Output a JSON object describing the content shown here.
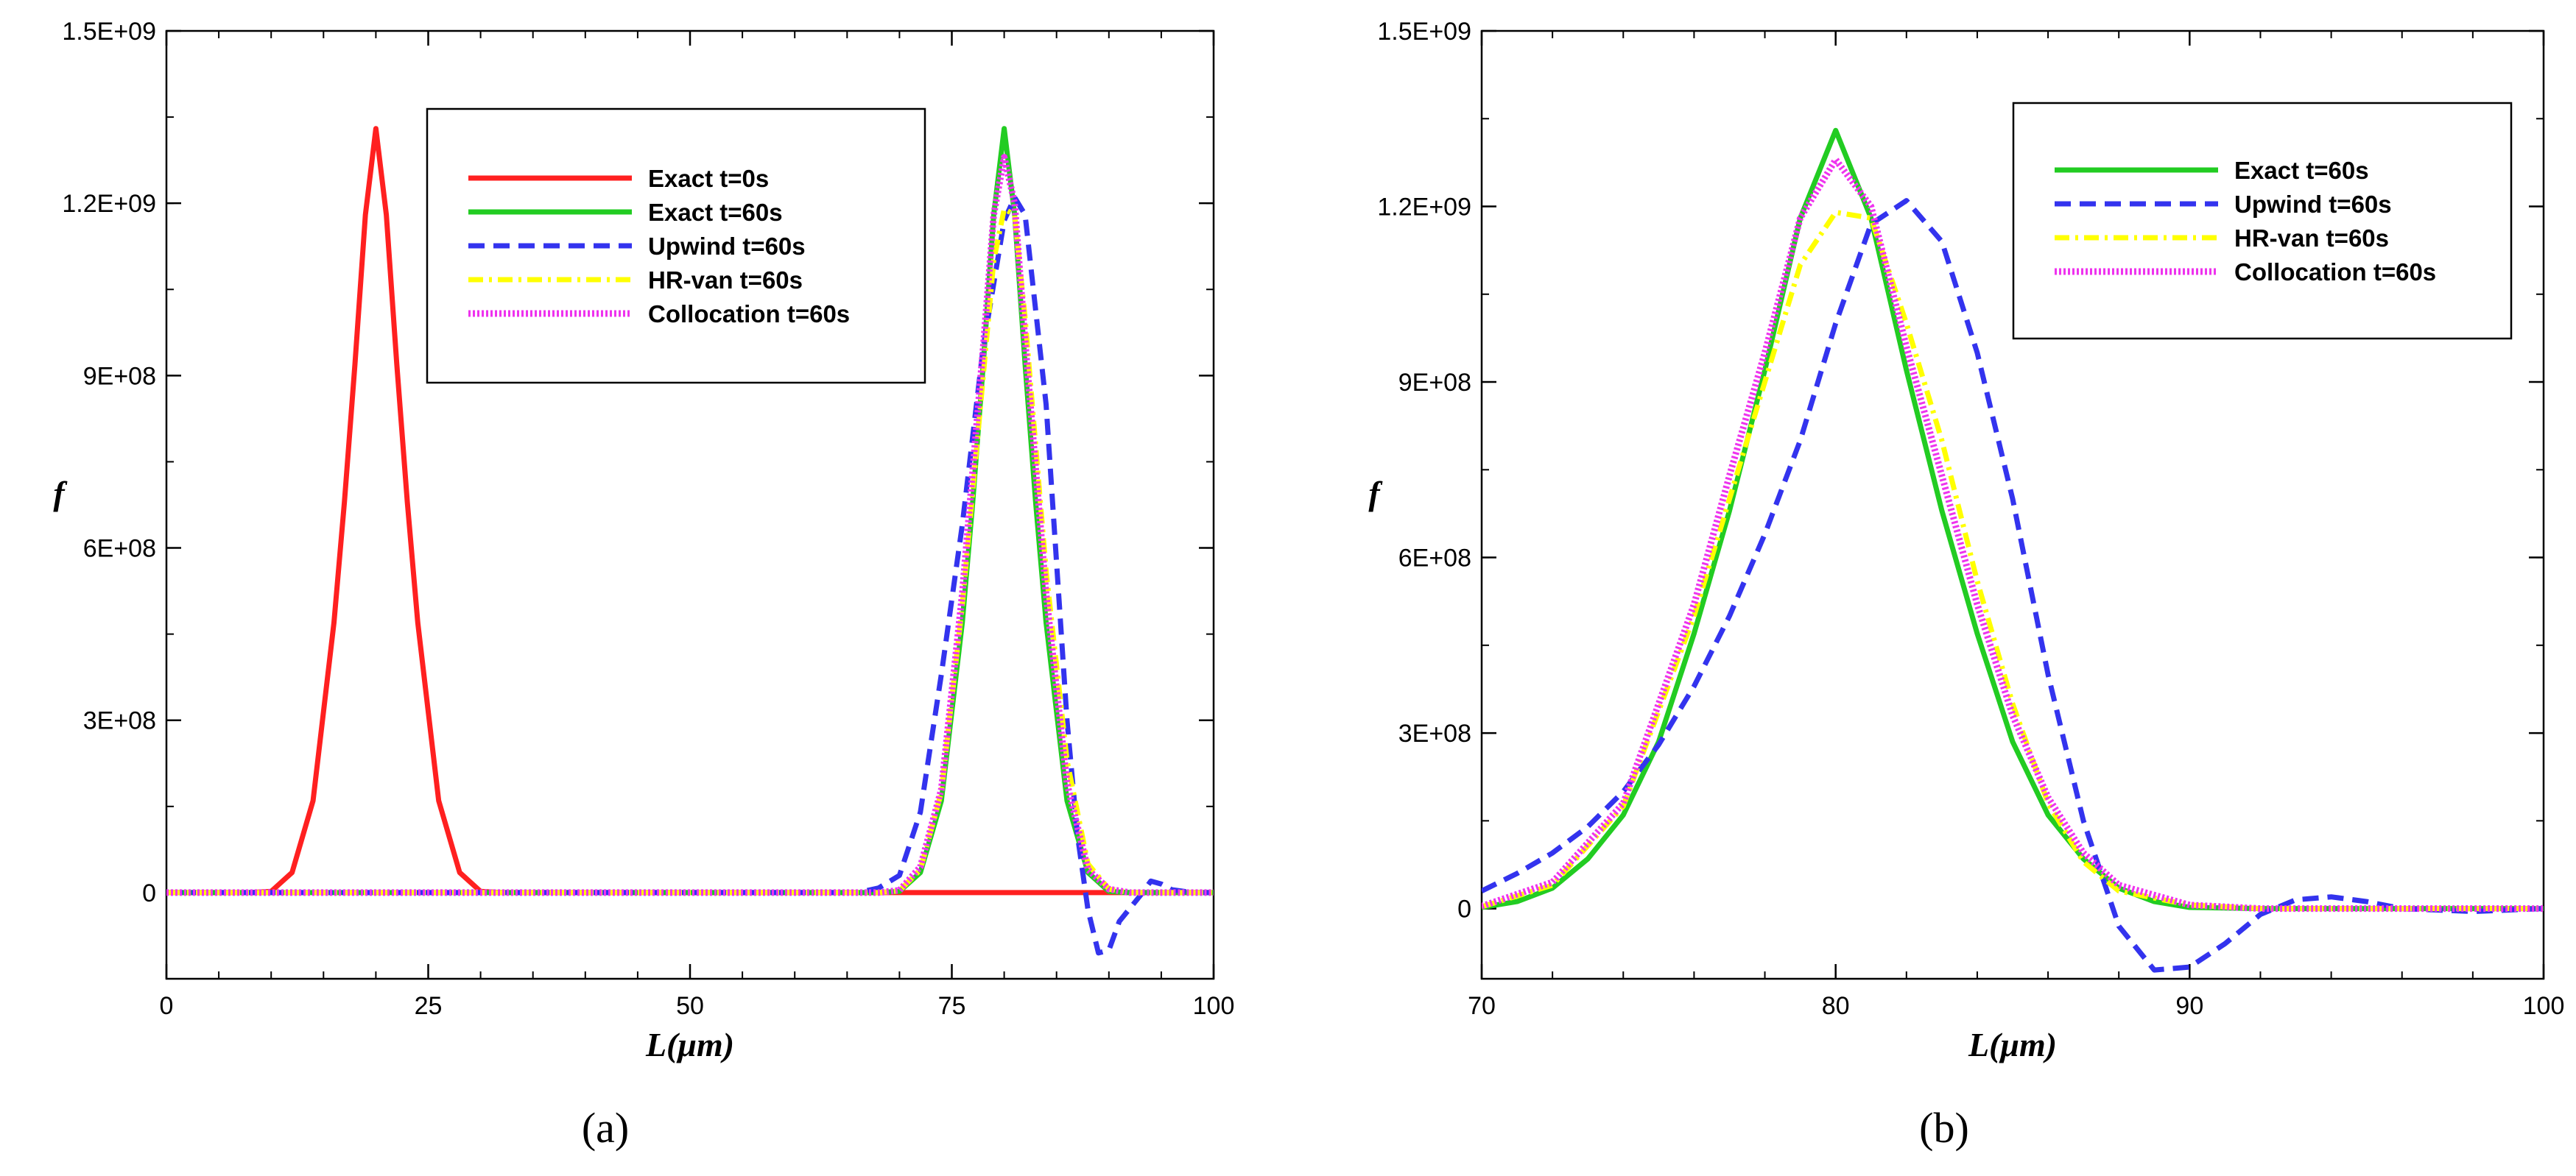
{
  "chart_data": [
    {
      "type": "line",
      "panel": "(a)",
      "xlabel": "L(μm)",
      "ylabel": "f",
      "xlim": [
        0,
        100
      ],
      "ylim": [
        -150000000,
        1500000000
      ],
      "xticks": [
        0,
        25,
        50,
        75,
        100
      ],
      "xtick_labels": [
        "0",
        "25",
        "50",
        "75",
        "100"
      ],
      "yticks": [
        0,
        300000000,
        600000000,
        900000000,
        1200000000,
        1500000000
      ],
      "ytick_labels": [
        "0",
        "3E+08",
        "6E+08",
        "9E+08",
        "1.2E+09",
        "1.5E+09"
      ],
      "legend_position": "top-right",
      "series": [
        {
          "name": "Exact t=0s",
          "color": "#ff2020",
          "dash": "solid",
          "x": [
            0,
            8,
            10,
            12,
            14,
            16,
            17,
            18,
            19,
            20,
            21,
            22,
            23,
            24,
            26,
            28,
            30,
            32,
            100
          ],
          "y": [
            0,
            0,
            2000000,
            35000000,
            160000000,
            470000000,
            680000000,
            920000000,
            1180000000,
            1330000000,
            1180000000,
            920000000,
            680000000,
            470000000,
            160000000,
            35000000,
            2000000,
            0,
            0
          ]
        },
        {
          "name": "Exact t=60s",
          "color": "#22cc22",
          "dash": "solid",
          "x": [
            0,
            68,
            70,
            72,
            74,
            76,
            77,
            78,
            79,
            80,
            81,
            82,
            83,
            84,
            86,
            88,
            90,
            92,
            100
          ],
          "y": [
            0,
            0,
            2000000,
            35000000,
            160000000,
            470000000,
            680000000,
            920000000,
            1180000000,
            1330000000,
            1180000000,
            920000000,
            680000000,
            470000000,
            160000000,
            35000000,
            2000000,
            0,
            0
          ]
        },
        {
          "name": "Upwind t=60s",
          "color": "#3333ee",
          "dash": "dashed",
          "x": [
            0,
            66,
            68,
            70,
            72,
            74,
            76,
            78,
            80,
            81,
            82,
            84,
            86,
            87,
            88,
            89,
            90,
            91,
            93,
            94,
            95,
            96,
            98,
            100
          ],
          "y": [
            0,
            0,
            8000000,
            30000000,
            140000000,
            380000000,
            640000000,
            950000000,
            1170000000,
            1210000000,
            1180000000,
            850000000,
            300000000,
            100000000,
            -30000000,
            -105000000,
            -100000000,
            -50000000,
            -5000000,
            20000000,
            15000000,
            5000000,
            0,
            0
          ]
        },
        {
          "name": "HR-van t=60s",
          "color": "#ffff00",
          "dash": "dashdot",
          "x": [
            0,
            68,
            70,
            72,
            74,
            76,
            78,
            79,
            80,
            81,
            82,
            84,
            86,
            88,
            90,
            92,
            100
          ],
          "y": [
            0,
            0,
            3000000,
            40000000,
            175000000,
            500000000,
            900000000,
            1100000000,
            1190000000,
            1180000000,
            1000000000,
            560000000,
            230000000,
            50000000,
            6000000,
            0,
            0
          ]
        },
        {
          "name": "Collocation t=60s",
          "color": "#ee33ee",
          "dash": "dotted",
          "x": [
            0,
            68,
            70,
            72,
            74,
            76,
            78,
            79,
            80,
            81,
            82,
            84,
            86,
            88,
            90,
            92,
            100
          ],
          "y": [
            0,
            0,
            4000000,
            45000000,
            180000000,
            520000000,
            950000000,
            1180000000,
            1280000000,
            1200000000,
            960000000,
            520000000,
            190000000,
            40000000,
            6000000,
            0,
            0
          ]
        }
      ]
    },
    {
      "type": "line",
      "panel": "(b)",
      "xlabel": "L(μm)",
      "ylabel": "f",
      "xlim": [
        70,
        100
      ],
      "ylim": [
        -120000000,
        1500000000
      ],
      "xticks": [
        70,
        80,
        90,
        100
      ],
      "xtick_labels": [
        "70",
        "80",
        "90",
        "100"
      ],
      "yticks": [
        0,
        300000000,
        600000000,
        900000000,
        1200000000,
        1500000000
      ],
      "ytick_labels": [
        "0",
        "3E+08",
        "6E+08",
        "9E+08",
        "1.2E+09",
        "1.5E+09"
      ],
      "legend_position": "top-right",
      "series": [
        {
          "name": "Exact t=60s",
          "color": "#22cc22",
          "dash": "solid",
          "x": [
            70,
            71,
            72,
            73,
            74,
            75,
            76,
            77,
            78,
            79,
            80,
            81,
            82,
            83,
            84,
            85,
            86,
            87,
            88,
            89,
            90,
            92,
            95,
            100
          ],
          "y": [
            2000000,
            12000000,
            35000000,
            85000000,
            160000000,
            285000000,
            470000000,
            680000000,
            920000000,
            1180000000,
            1330000000,
            1180000000,
            920000000,
            680000000,
            470000000,
            285000000,
            160000000,
            85000000,
            35000000,
            12000000,
            2000000,
            0,
            0,
            0
          ]
        },
        {
          "name": "Upwind t=60s",
          "color": "#3333ee",
          "dash": "dashed",
          "x": [
            70,
            71,
            72,
            73,
            74,
            75,
            76,
            77,
            78,
            79,
            80,
            81,
            82,
            83,
            84,
            85,
            86,
            87,
            88,
            89,
            90,
            91,
            92,
            93,
            94,
            95,
            96,
            98,
            100
          ],
          "y": [
            30000000,
            60000000,
            95000000,
            140000000,
            200000000,
            280000000,
            380000000,
            500000000,
            640000000,
            800000000,
            1000000000,
            1170000000,
            1210000000,
            1140000000,
            950000000,
            700000000,
            400000000,
            150000000,
            -30000000,
            -105000000,
            -100000000,
            -60000000,
            -10000000,
            15000000,
            20000000,
            12000000,
            0,
            -5000000,
            0
          ]
        },
        {
          "name": "HR-van t=60s",
          "color": "#ffff00",
          "dash": "dashdot",
          "x": [
            70,
            72,
            74,
            76,
            77,
            78,
            79,
            80,
            81,
            82,
            83,
            84,
            85,
            86,
            87,
            88,
            90,
            92,
            95,
            100
          ],
          "y": [
            3000000,
            40000000,
            175000000,
            500000000,
            700000000,
            900000000,
            1100000000,
            1190000000,
            1180000000,
            1000000000,
            800000000,
            560000000,
            350000000,
            180000000,
            80000000,
            30000000,
            6000000,
            0,
            0,
            0
          ]
        },
        {
          "name": "Collocation t=60s",
          "color": "#ee33ee",
          "dash": "dotted",
          "x": [
            70,
            72,
            74,
            76,
            77,
            78,
            79,
            80,
            81,
            82,
            83,
            84,
            85,
            86,
            87,
            88,
            90,
            92,
            95,
            100
          ],
          "y": [
            4000000,
            45000000,
            180000000,
            520000000,
            740000000,
            950000000,
            1180000000,
            1280000000,
            1200000000,
            960000000,
            740000000,
            520000000,
            330000000,
            190000000,
            95000000,
            40000000,
            6000000,
            0,
            0,
            0
          ]
        }
      ]
    }
  ]
}
